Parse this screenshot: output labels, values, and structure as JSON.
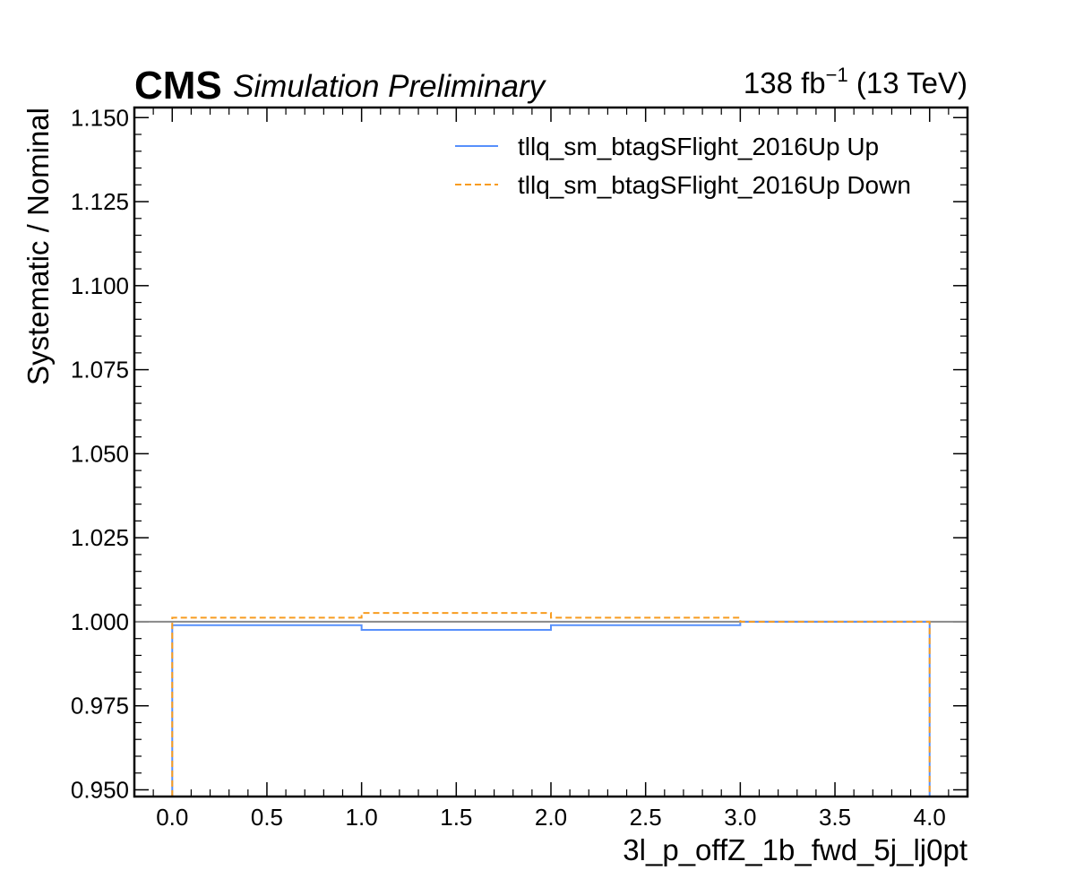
{
  "header": {
    "experiment": "CMS",
    "status": "Simulation Preliminary",
    "lumi_value": "138 fb",
    "lumi_exponent": "−1",
    "energy": " (13 TeV)"
  },
  "chart_data": {
    "type": "line",
    "title": "",
    "xlabel": "3l_p_offZ_1b_fwd_5j_lj0pt",
    "ylabel": "Systematic / Nominal",
    "xlim": [
      -0.2,
      4.2
    ],
    "ylim": [
      0.948,
      1.153
    ],
    "xticks": [
      0.0,
      0.5,
      1.0,
      1.5,
      2.0,
      2.5,
      3.0,
      3.5,
      4.0
    ],
    "xtick_labels": [
      "0.0",
      "0.5",
      "1.0",
      "1.5",
      "2.0",
      "2.5",
      "3.0",
      "3.5",
      "4.0"
    ],
    "yticks": [
      0.95,
      0.975,
      1.0,
      1.025,
      1.05,
      1.075,
      1.1,
      1.125,
      1.15
    ],
    "ytick_labels": [
      "0.950",
      "0.975",
      "1.000",
      "1.025",
      "1.050",
      "1.075",
      "1.100",
      "1.125",
      "1.150"
    ],
    "reference_line": 1.0,
    "bin_edges": [
      0,
      1,
      2,
      3,
      4
    ],
    "series": [
      {
        "name": "tllq_sm_btagSFlight_2016Up Up",
        "values": [
          0.999,
          0.9976,
          0.999,
          1.0
        ],
        "color": "#5790fc",
        "style": "solid"
      },
      {
        "name": "tllq_sm_btagSFlight_2016Up Down",
        "values": [
          1.0012,
          1.0026,
          1.0012,
          1.0
        ],
        "color": "#f89c20",
        "style": "dashed"
      }
    ],
    "legend_position": "top-right",
    "grid": false
  }
}
